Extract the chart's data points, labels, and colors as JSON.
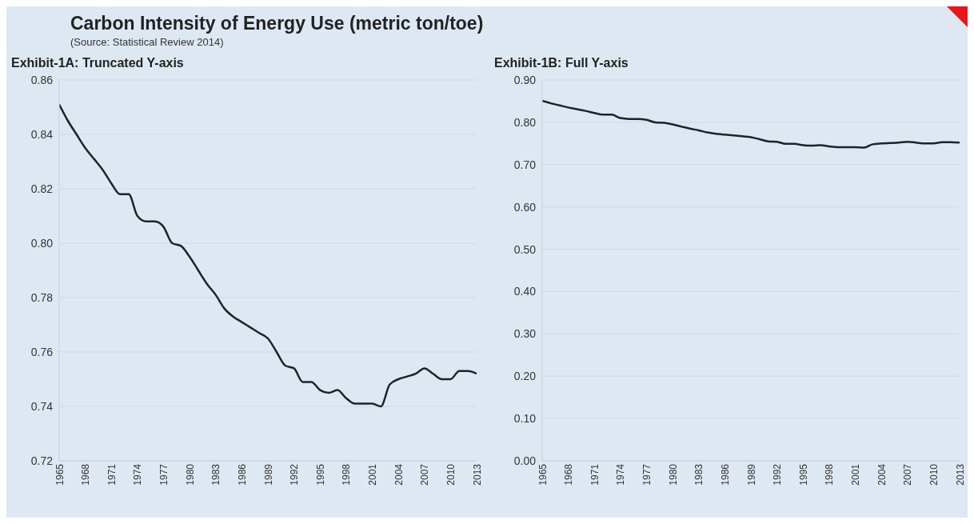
{
  "chart_data": [
    {
      "type": "line",
      "title": "Carbon Intensity of Energy Use (metric ton/toe)",
      "subtitle": "Exhibit-1A: Truncated Y-axis",
      "annotations": [
        "(Source: Statistical Review 2014)"
      ],
      "x": [
        1965,
        1966,
        1967,
        1968,
        1969,
        1970,
        1971,
        1972,
        1973,
        1974,
        1975,
        1976,
        1977,
        1978,
        1979,
        1980,
        1981,
        1982,
        1983,
        1984,
        1985,
        1986,
        1987,
        1988,
        1989,
        1990,
        1991,
        1992,
        1993,
        1994,
        1995,
        1996,
        1997,
        1998,
        1999,
        2000,
        2001,
        2002,
        2003,
        2004,
        2005,
        2006,
        2007,
        2008,
        2009,
        2010,
        2011,
        2012,
        2013
      ],
      "series": [
        {
          "color": "#1f2328",
          "values": [
            0.851,
            0.845,
            0.84,
            0.835,
            0.831,
            0.827,
            0.822,
            0.818,
            0.818,
            0.81,
            0.808,
            0.808,
            0.806,
            0.8,
            0.799,
            0.795,
            0.79,
            0.785,
            0.781,
            0.776,
            0.773,
            0.771,
            0.769,
            0.767,
            0.765,
            0.76,
            0.755,
            0.754,
            0.749,
            0.749,
            0.746,
            0.745,
            0.746,
            0.743,
            0.741,
            0.741,
            0.741,
            0.74,
            0.748,
            0.75,
            0.751,
            0.752,
            0.754,
            0.752,
            0.75,
            0.75,
            0.753,
            0.753,
            0.752
          ]
        }
      ],
      "xlim": [
        1965,
        2013
      ],
      "xticks": [
        1965,
        1968,
        1971,
        1974,
        1977,
        1980,
        1983,
        1986,
        1989,
        1992,
        1995,
        1998,
        2001,
        2004,
        2007,
        2010,
        2013
      ],
      "ylim": [
        0.72,
        0.86
      ],
      "yticks": [
        0.72,
        0.74,
        0.76,
        0.78,
        {
          "value": 0.8,
          "label": "0.80"
        },
        0.82,
        0.84,
        0.86
      ],
      "grid": "y",
      "legend": false
    },
    {
      "type": "line",
      "title": "Exhibit-1B: Full Y-axis",
      "x": [
        1965,
        1966,
        1967,
        1968,
        1969,
        1970,
        1971,
        1972,
        1973,
        1974,
        1975,
        1976,
        1977,
        1978,
        1979,
        1980,
        1981,
        1982,
        1983,
        1984,
        1985,
        1986,
        1987,
        1988,
        1989,
        1990,
        1991,
        1992,
        1993,
        1994,
        1995,
        1996,
        1997,
        1998,
        1999,
        2000,
        2001,
        2002,
        2003,
        2004,
        2005,
        2006,
        2007,
        2008,
        2009,
        2010,
        2011,
        2012,
        2013
      ],
      "series": [
        {
          "color": "#1f2328",
          "values": [
            0.851,
            0.845,
            0.84,
            0.835,
            0.831,
            0.827,
            0.822,
            0.818,
            0.818,
            0.81,
            0.808,
            0.808,
            0.806,
            0.8,
            0.799,
            0.795,
            0.79,
            0.785,
            0.781,
            0.776,
            0.773,
            0.771,
            0.769,
            0.767,
            0.765,
            0.76,
            0.755,
            0.754,
            0.749,
            0.749,
            0.746,
            0.745,
            0.746,
            0.743,
            0.741,
            0.741,
            0.741,
            0.74,
            0.748,
            0.75,
            0.751,
            0.752,
            0.754,
            0.752,
            0.75,
            0.75,
            0.753,
            0.753,
            0.752
          ]
        }
      ],
      "xlim": [
        1965,
        2013
      ],
      "xticks": [
        1965,
        1968,
        1971,
        1974,
        1977,
        1980,
        1983,
        1986,
        1989,
        1992,
        1995,
        1998,
        2001,
        2004,
        2007,
        2010,
        2013
      ],
      "ylim": [
        0,
        0.9
      ],
      "yticks": [
        {
          "value": 0,
          "label": "0.00"
        },
        {
          "value": 0.1,
          "label": "0.10"
        },
        {
          "value": 0.2,
          "label": "0.20"
        },
        {
          "value": 0.3,
          "label": "0.30"
        },
        {
          "value": 0.4,
          "label": "0.40"
        },
        {
          "value": 0.5,
          "label": "0.50"
        },
        {
          "value": 0.6,
          "label": "0.60"
        },
        {
          "value": 0.7,
          "label": "0.70"
        },
        {
          "value": 0.8,
          "label": "0.80"
        },
        {
          "value": 0.9,
          "label": "0.90"
        }
      ],
      "grid": "y",
      "legend": false
    }
  ]
}
